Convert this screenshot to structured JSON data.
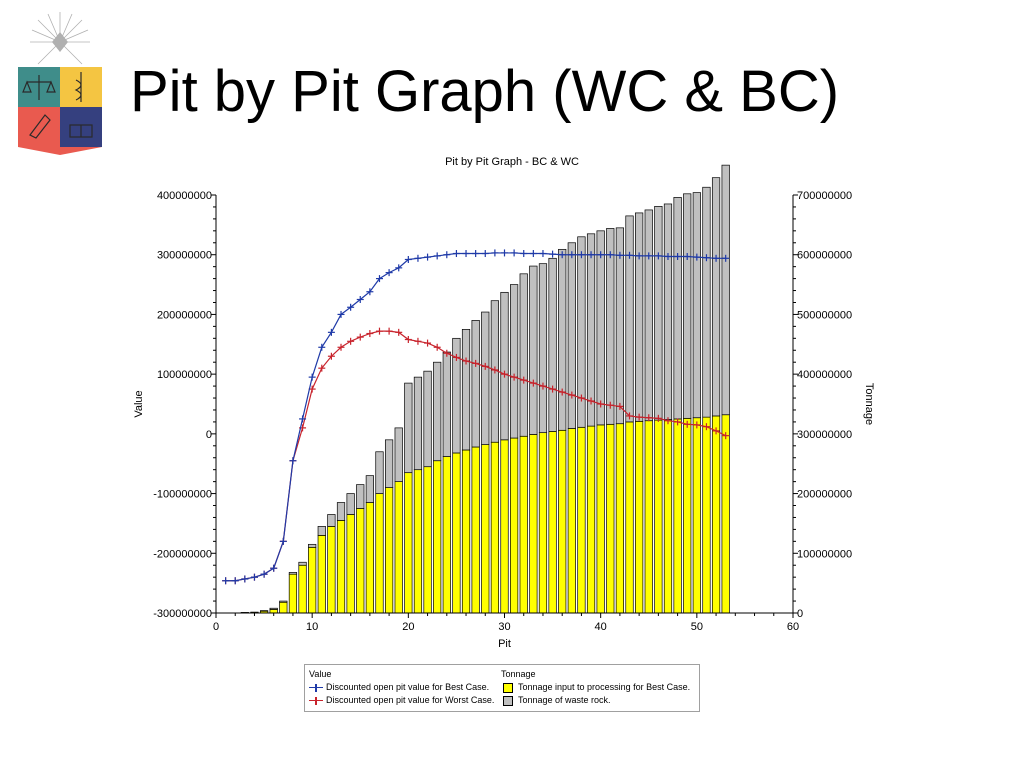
{
  "slide": {
    "title": "Pit by Pit Graph (WC & BC)"
  },
  "chart_data": {
    "type": "bar+line",
    "title": "Pit by Pit Graph - BC & WC",
    "xlabel": "Pit",
    "ylabel_left": "Value",
    "ylabel_right": "Tonnage",
    "xlim": [
      0,
      60
    ],
    "x_ticks": [
      "0",
      "10",
      "20",
      "30",
      "40",
      "50",
      "60"
    ],
    "ylim_left": [
      -300000000,
      400000000
    ],
    "y_ticks_left": [
      "400000000",
      "300000000",
      "200000000",
      "100000000",
      "0",
      "-100000000",
      "-200000000",
      "-300000000"
    ],
    "ylim_right": [
      0,
      700000000
    ],
    "y_ticks_right": [
      "700000000",
      "600000000",
      "500000000",
      "400000000",
      "300000000",
      "200000000",
      "100000000",
      "0"
    ],
    "grid": false,
    "legend": {
      "value_header": "Value",
      "tonnage_header": "Tonnage",
      "items": [
        "Discounted open pit value for Best Case.",
        "Discounted open pit value for Worst Case.",
        "Tonnage input to processing for Best Case.",
        "Tonnage of waste rock."
      ]
    },
    "colors": {
      "best_case": "#1f3aa8",
      "worst_case": "#c8232c",
      "ore": "#ffff00",
      "waste": "#c0c0c0"
    },
    "pits": [
      1,
      2,
      3,
      4,
      5,
      6,
      7,
      8,
      9,
      10,
      11,
      12,
      13,
      14,
      15,
      16,
      17,
      18,
      19,
      20,
      21,
      22,
      23,
      24,
      25,
      26,
      27,
      28,
      29,
      30,
      31,
      32,
      33,
      34,
      35,
      36,
      37,
      38,
      39,
      40,
      41,
      42,
      43,
      44,
      45,
      46,
      47,
      48,
      49,
      50,
      51,
      52,
      53
    ],
    "series": [
      {
        "name": "Discounted open pit value for Best Case.",
        "axis": "left",
        "kind": "line",
        "values": [
          -246000000,
          -246000000,
          -243000000,
          -240000000,
          -235000000,
          -225000000,
          -180000000,
          -45000000,
          25000000,
          95000000,
          145000000,
          170000000,
          200000000,
          212000000,
          225000000,
          238000000,
          260000000,
          270000000,
          278000000,
          292000000,
          294000000,
          296000000,
          298000000,
          300000000,
          302000000,
          302000000,
          302000000,
          302000000,
          303000000,
          303000000,
          303000000,
          302000000,
          302000000,
          302000000,
          301000000,
          300000000,
          300000000,
          300000000,
          300000000,
          300000000,
          300000000,
          299000000,
          299000000,
          298000000,
          298000000,
          298000000,
          297000000,
          297000000,
          297000000,
          296000000,
          295000000,
          294000000,
          294000000
        ]
      },
      {
        "name": "Discounted open pit value for Worst Case.",
        "axis": "left",
        "kind": "line",
        "values": [
          -246000000,
          -246000000,
          -243000000,
          -240000000,
          -235000000,
          -225000000,
          -180000000,
          -45000000,
          10000000,
          75000000,
          110000000,
          130000000,
          145000000,
          155000000,
          162000000,
          168000000,
          172000000,
          172000000,
          170000000,
          158000000,
          155000000,
          152000000,
          145000000,
          135000000,
          128000000,
          122000000,
          118000000,
          113000000,
          107000000,
          100000000,
          95000000,
          90000000,
          85000000,
          80000000,
          75000000,
          70000000,
          65000000,
          60000000,
          55000000,
          50000000,
          48000000,
          46000000,
          30000000,
          28000000,
          27000000,
          26000000,
          22000000,
          20000000,
          16000000,
          15000000,
          12000000,
          5000000,
          -3000000
        ]
      },
      {
        "name": "Tonnage input to processing for Best Case.",
        "axis": "right",
        "kind": "bar",
        "values": [
          0,
          0,
          1000000,
          1500000,
          3000000,
          6000000,
          18000000,
          65000000,
          80000000,
          110000000,
          130000000,
          145000000,
          155000000,
          165000000,
          175000000,
          185000000,
          200000000,
          210000000,
          220000000,
          235000000,
          240000000,
          245000000,
          255000000,
          262000000,
          268000000,
          273000000,
          278000000,
          282000000,
          286000000,
          290000000,
          293000000,
          296000000,
          299000000,
          302000000,
          304000000,
          306000000,
          309000000,
          311000000,
          313000000,
          315000000,
          316000000,
          317000000,
          320000000,
          321000000,
          322000000,
          323000000,
          324000000,
          325000000,
          326000000,
          327000000,
          328000000,
          330000000,
          332000000
        ]
      },
      {
        "name": "Tonnage of waste rock.",
        "axis": "right",
        "kind": "bar",
        "values": [
          0,
          0,
          0,
          0,
          1000000,
          2000000,
          2000000,
          3000000,
          5000000,
          5000000,
          15000000,
          20000000,
          30000000,
          35000000,
          40000000,
          45000000,
          70000000,
          80000000,
          90000000,
          150000000,
          155000000,
          160000000,
          165000000,
          175000000,
          192000000,
          202000000,
          212000000,
          222000000,
          237000000,
          247000000,
          257000000,
          272000000,
          282000000,
          283000000,
          290000000,
          303000000,
          311000000,
          319000000,
          322000000,
          325000000,
          328000000,
          328000000,
          345000000,
          349000000,
          353000000,
          358000000,
          361000000,
          371000000,
          376000000,
          377000000,
          385000000,
          399000000,
          418000000
        ]
      }
    ]
  }
}
